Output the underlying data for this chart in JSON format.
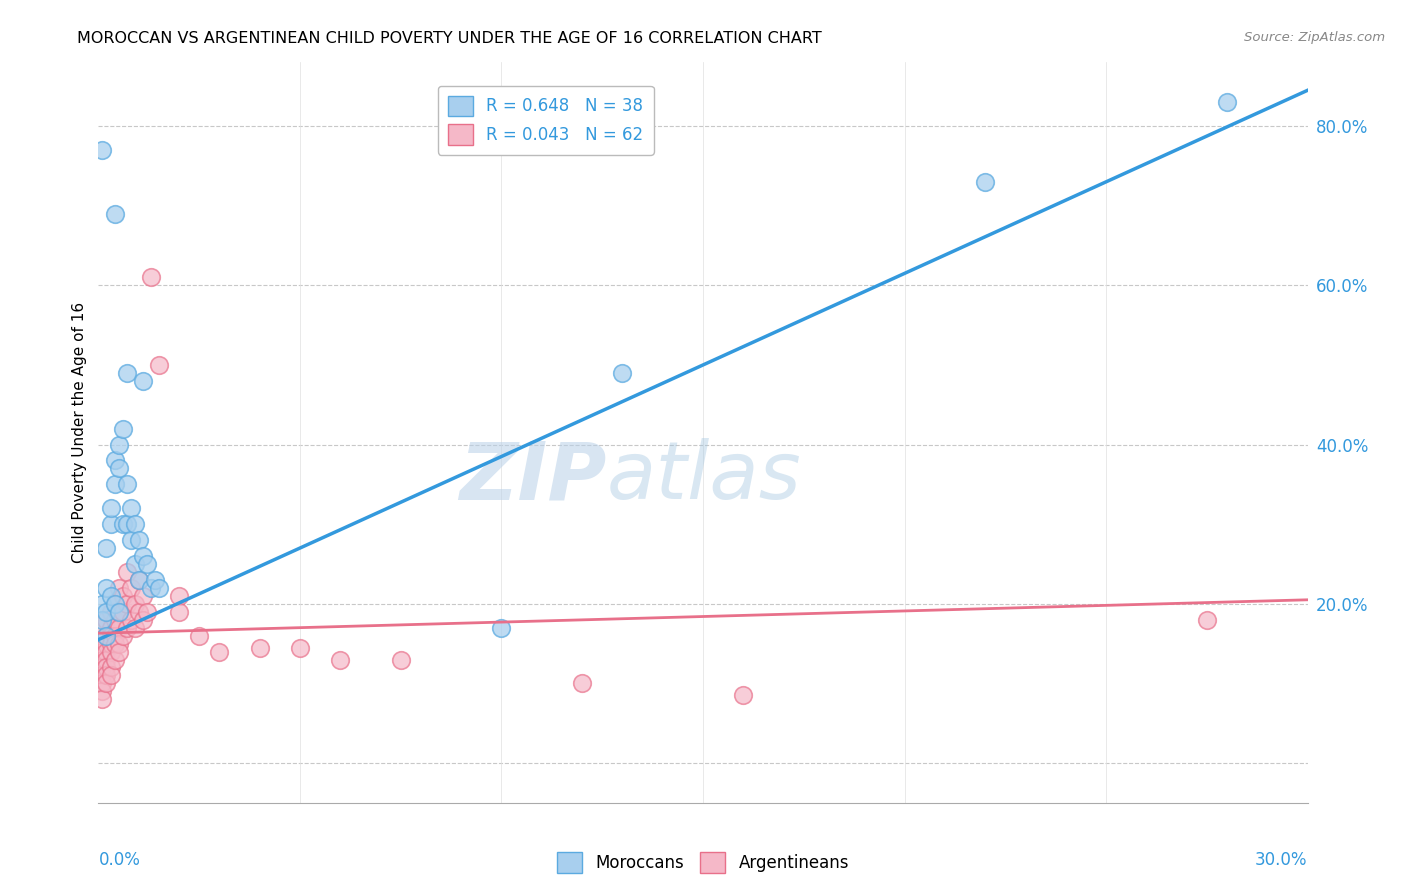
{
  "title": "MOROCCAN VS ARGENTINEAN CHILD POVERTY UNDER THE AGE OF 16 CORRELATION CHART",
  "source": "Source: ZipAtlas.com",
  "ylabel": "Child Poverty Under the Age of 16",
  "xlim": [
    0.0,
    0.3
  ],
  "ylim": [
    -0.05,
    0.88
  ],
  "yticks": [
    0.0,
    0.2,
    0.4,
    0.6,
    0.8
  ],
  "ytick_labels": [
    "",
    "20.0%",
    "40.0%",
    "60.0%",
    "80.0%"
  ],
  "r_moroccan": 0.648,
  "n_moroccan": 38,
  "r_argentinean": 0.043,
  "n_argentinean": 62,
  "moroccan_fill": "#A8CFEE",
  "moroccan_edge": "#5BAAE0",
  "argentinean_fill": "#F5B8C8",
  "argentinean_edge": "#E8708A",
  "line_moroccan_color": "#3399DD",
  "line_argentinean_color": "#E8708A",
  "watermark_color": "#D0E4F5",
  "moroccan_line_x0": 0.0,
  "moroccan_line_y0": 0.155,
  "moroccan_line_x1": 0.3,
  "moroccan_line_y1": 0.845,
  "argentinean_line_x0": 0.0,
  "argentinean_line_y0": 0.163,
  "argentinean_line_x1": 0.3,
  "argentinean_line_y1": 0.205,
  "moroccan_scatter": [
    [
      0.001,
      0.77
    ],
    [
      0.004,
      0.69
    ],
    [
      0.007,
      0.49
    ],
    [
      0.011,
      0.48
    ],
    [
      0.001,
      0.2
    ],
    [
      0.002,
      0.22
    ],
    [
      0.002,
      0.27
    ],
    [
      0.003,
      0.3
    ],
    [
      0.003,
      0.32
    ],
    [
      0.004,
      0.35
    ],
    [
      0.004,
      0.38
    ],
    [
      0.005,
      0.4
    ],
    [
      0.005,
      0.37
    ],
    [
      0.006,
      0.42
    ],
    [
      0.006,
      0.3
    ],
    [
      0.007,
      0.35
    ],
    [
      0.007,
      0.3
    ],
    [
      0.008,
      0.32
    ],
    [
      0.008,
      0.28
    ],
    [
      0.009,
      0.3
    ],
    [
      0.009,
      0.25
    ],
    [
      0.01,
      0.28
    ],
    [
      0.01,
      0.23
    ],
    [
      0.011,
      0.26
    ],
    [
      0.012,
      0.25
    ],
    [
      0.013,
      0.22
    ],
    [
      0.014,
      0.23
    ],
    [
      0.015,
      0.22
    ],
    [
      0.001,
      0.18
    ],
    [
      0.002,
      0.19
    ],
    [
      0.003,
      0.21
    ],
    [
      0.002,
      0.16
    ],
    [
      0.004,
      0.2
    ],
    [
      0.005,
      0.19
    ],
    [
      0.22,
      0.73
    ],
    [
      0.28,
      0.83
    ],
    [
      0.1,
      0.17
    ],
    [
      0.13,
      0.49
    ]
  ],
  "argentinean_scatter": [
    [
      0.001,
      0.17
    ],
    [
      0.001,
      0.155
    ],
    [
      0.001,
      0.14
    ],
    [
      0.001,
      0.13
    ],
    [
      0.001,
      0.12
    ],
    [
      0.001,
      0.11
    ],
    [
      0.001,
      0.1
    ],
    [
      0.001,
      0.09
    ],
    [
      0.001,
      0.08
    ],
    [
      0.002,
      0.18
    ],
    [
      0.002,
      0.16
    ],
    [
      0.002,
      0.15
    ],
    [
      0.002,
      0.14
    ],
    [
      0.002,
      0.13
    ],
    [
      0.002,
      0.12
    ],
    [
      0.002,
      0.11
    ],
    [
      0.002,
      0.1
    ],
    [
      0.003,
      0.19
    ],
    [
      0.003,
      0.17
    ],
    [
      0.003,
      0.16
    ],
    [
      0.003,
      0.15
    ],
    [
      0.003,
      0.14
    ],
    [
      0.003,
      0.12
    ],
    [
      0.003,
      0.11
    ],
    [
      0.004,
      0.2
    ],
    [
      0.004,
      0.18
    ],
    [
      0.004,
      0.16
    ],
    [
      0.004,
      0.15
    ],
    [
      0.004,
      0.13
    ],
    [
      0.005,
      0.22
    ],
    [
      0.005,
      0.19
    ],
    [
      0.005,
      0.17
    ],
    [
      0.005,
      0.15
    ],
    [
      0.005,
      0.14
    ],
    [
      0.006,
      0.21
    ],
    [
      0.006,
      0.19
    ],
    [
      0.006,
      0.16
    ],
    [
      0.007,
      0.24
    ],
    [
      0.007,
      0.2
    ],
    [
      0.007,
      0.17
    ],
    [
      0.008,
      0.22
    ],
    [
      0.008,
      0.18
    ],
    [
      0.009,
      0.2
    ],
    [
      0.009,
      0.17
    ],
    [
      0.01,
      0.23
    ],
    [
      0.01,
      0.19
    ],
    [
      0.011,
      0.21
    ],
    [
      0.011,
      0.18
    ],
    [
      0.012,
      0.19
    ],
    [
      0.013,
      0.61
    ],
    [
      0.015,
      0.5
    ],
    [
      0.02,
      0.21
    ],
    [
      0.02,
      0.19
    ],
    [
      0.025,
      0.16
    ],
    [
      0.03,
      0.14
    ],
    [
      0.04,
      0.145
    ],
    [
      0.05,
      0.145
    ],
    [
      0.06,
      0.13
    ],
    [
      0.075,
      0.13
    ],
    [
      0.12,
      0.1
    ],
    [
      0.16,
      0.085
    ],
    [
      0.275,
      0.18
    ]
  ]
}
